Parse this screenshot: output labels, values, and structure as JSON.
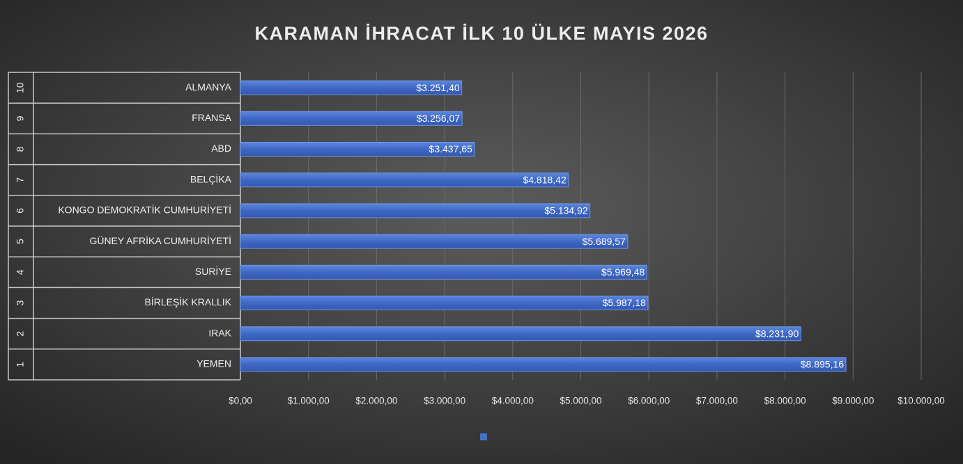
{
  "chart_data": {
    "type": "bar",
    "orientation": "horizontal",
    "title": "KARAMAN İHRACAT İLK 10 ÜLKE  MAYIS 2026",
    "ranks": [
      "1",
      "2",
      "3",
      "4",
      "5",
      "6",
      "7",
      "8",
      "9",
      "10"
    ],
    "categories": [
      "YEMEN",
      "IRAK",
      "BİRLEŞİK KRALLIK",
      "SURİYE",
      "GÜNEY AFRİKA CUMHURİYETİ",
      "KONGO DEMOKRATİK CUMHURİYETİ",
      "BELÇİKA",
      "ABD",
      "FRANSA",
      "ALMANYA"
    ],
    "values": [
      8895.16,
      8231.9,
      5987.18,
      5969.48,
      5689.57,
      5134.92,
      4818.42,
      3437.65,
      3256.07,
      3251.4
    ],
    "value_labels": [
      "$8.895,16",
      "$8.231,90",
      "$5.987,18",
      "$5.969,48",
      "$5.689,57",
      "$5.134,92",
      "$4.818,42",
      "$3.437,65",
      "$3.256,07",
      "$3.251,40"
    ],
    "color": "#4472c4",
    "xlim": [
      0,
      10000
    ],
    "xticks": [
      {
        "value": 0,
        "label": "$0,00"
      },
      {
        "value": 1000,
        "label": "$1.000,00"
      },
      {
        "value": 2000,
        "label": "$2.000,00"
      },
      {
        "value": 3000,
        "label": "$3.000,00"
      },
      {
        "value": 4000,
        "label": "$4.000,00"
      },
      {
        "value": 5000,
        "label": "$5.000,00"
      },
      {
        "value": 6000,
        "label": "$6.000,00"
      },
      {
        "value": 7000,
        "label": "$7.000,00"
      },
      {
        "value": 8000,
        "label": "$8.000,00"
      },
      {
        "value": 9000,
        "label": "$9.000,00"
      },
      {
        "value": 10000,
        "label": "$10.000,00"
      }
    ],
    "grid": true
  }
}
